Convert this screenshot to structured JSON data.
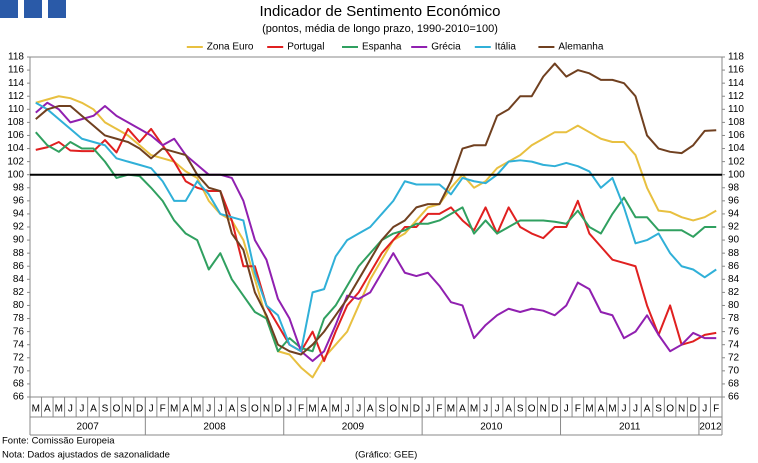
{
  "chart_data": {
    "type": "line",
    "title": "Indicador de Sentimento Económico",
    "subtitle": "(pontos, média de longo prazo, 1990-2010=100)",
    "categories": [
      "M",
      "A",
      "M",
      "J",
      "J",
      "A",
      "S",
      "O",
      "N",
      "D",
      "J",
      "F",
      "M",
      "A",
      "M",
      "J",
      "J",
      "A",
      "S",
      "O",
      "N",
      "D",
      "J",
      "F",
      "M",
      "A",
      "M",
      "J",
      "J",
      "A",
      "S",
      "O",
      "N",
      "D",
      "J",
      "F",
      "M",
      "A",
      "M",
      "J",
      "J",
      "A",
      "S",
      "O",
      "N",
      "D",
      "J",
      "F",
      "M",
      "A",
      "M",
      "J",
      "J",
      "A",
      "S",
      "O",
      "N",
      "D",
      "J",
      "F"
    ],
    "years": [
      "2007",
      "2008",
      "2009",
      "2010",
      "2011",
      "2012"
    ],
    "series": [
      {
        "name": "Zona Euro",
        "color": "#e8c040",
        "values": [
          111,
          111.5,
          112,
          111.7,
          111,
          110,
          108,
          107,
          106,
          104.5,
          103,
          102.5,
          102,
          100.5,
          99.5,
          96,
          94,
          93,
          90,
          84,
          78,
          73,
          72.5,
          70.5,
          69,
          72,
          74,
          76,
          80,
          84,
          87,
          90,
          91,
          93,
          95,
          95.5,
          98,
          100,
          98,
          99,
          101,
          102,
          103,
          104.5,
          105.5,
          106.5,
          106.5,
          107.5,
          106.5,
          105.5,
          105,
          105,
          103,
          98,
          94.5,
          94.3,
          93.5,
          93,
          93.5,
          94.5
        ]
      },
      {
        "name": "Portugal",
        "color": "#e02020",
        "values": [
          103.8,
          104.2,
          105,
          103.7,
          103.6,
          103.6,
          105.3,
          103.4,
          107,
          105,
          107,
          104.5,
          102,
          99,
          98,
          97.5,
          97.5,
          93,
          86,
          86,
          80,
          77,
          74,
          73,
          76,
          71.5,
          76,
          80,
          82,
          85,
          88,
          90,
          92,
          92,
          94,
          94,
          95,
          93,
          91.5,
          95,
          91,
          95,
          92,
          91,
          90.3,
          92,
          92,
          96,
          91,
          89,
          87,
          86.5,
          86,
          80,
          75.5,
          80,
          74,
          74.5,
          75.5,
          75.8
        ]
      },
      {
        "name": "Espanha",
        "color": "#30a060",
        "values": [
          106.5,
          104.5,
          103.5,
          105,
          104,
          104,
          102,
          99.5,
          100,
          99.8,
          98,
          96,
          93,
          91,
          90,
          85.5,
          88,
          84,
          81.5,
          79,
          78,
          73,
          75,
          73.5,
          73,
          78,
          80,
          83,
          86,
          88,
          90,
          91,
          91.5,
          92.5,
          92.5,
          93,
          94,
          95,
          91,
          93,
          91,
          92,
          93,
          93,
          93,
          92.8,
          92.5,
          94.5,
          92,
          91,
          94,
          96.5,
          93.5,
          93.5,
          91.5,
          91.5,
          91.5,
          90.5,
          92,
          92
        ]
      },
      {
        "name": "Grécia",
        "color": "#9020b0",
        "values": [
          109.5,
          111,
          110,
          108,
          108.5,
          109,
          110.5,
          109,
          108,
          107,
          106,
          104.5,
          105.5,
          103,
          101.5,
          100,
          100,
          99.5,
          96,
          90,
          87,
          81,
          78,
          73,
          71.5,
          73,
          77,
          81.5,
          81,
          82,
          85,
          88,
          85,
          84.5,
          85,
          83,
          80.5,
          80,
          75,
          77,
          78.5,
          79.5,
          79,
          79.5,
          79.2,
          78.5,
          80,
          83.5,
          82.5,
          79,
          78.5,
          75,
          76,
          78.5,
          75.5,
          73,
          74,
          75.8,
          75,
          75
        ]
      },
      {
        "name": "Itália",
        "color": "#30b0d8",
        "values": [
          111,
          110,
          108.5,
          107,
          105.5,
          105,
          104.5,
          102.5,
          102,
          101.5,
          101,
          99,
          96,
          96,
          99,
          97,
          94,
          93.5,
          93,
          85,
          80,
          78.5,
          74,
          73,
          82,
          82.5,
          87.5,
          90,
          91,
          92,
          94,
          96,
          99,
          98.5,
          98.5,
          98.5,
          97,
          99.5,
          99,
          98.7,
          100,
          102,
          102.2,
          102,
          101.5,
          101.3,
          101.8,
          101.3,
          100.5,
          98,
          99.5,
          95,
          89.5,
          90,
          91,
          88,
          86,
          85.5,
          84.3,
          85.5
        ]
      },
      {
        "name": "Alemanha",
        "color": "#704020",
        "values": [
          108.5,
          110,
          110.5,
          110.5,
          109,
          107.5,
          106,
          105.5,
          105,
          104,
          102.5,
          104,
          103.5,
          103,
          100,
          98,
          97.5,
          91,
          88.5,
          82,
          78.5,
          74,
          73,
          72.5,
          74,
          76,
          78.5,
          81,
          84,
          87,
          90,
          92,
          93,
          95,
          95.5,
          95.5,
          99,
          104,
          104.5,
          104.5,
          109,
          110,
          112,
          112,
          115,
          117,
          115,
          116,
          115.5,
          114.5,
          114.5,
          114,
          112,
          106,
          104,
          103.5,
          103.3,
          104.5,
          106.7,
          106.8
        ]
      }
    ],
    "reference_line": 100,
    "ylim": [
      66,
      118
    ],
    "yticks": [
      66,
      68,
      70,
      72,
      74,
      76,
      78,
      80,
      82,
      84,
      86,
      88,
      90,
      92,
      94,
      96,
      98,
      100,
      102,
      104,
      106,
      108,
      110,
      112,
      114,
      116,
      118
    ],
    "y2lim": [
      66,
      118
    ],
    "y2ticks": [
      66,
      68,
      70,
      72,
      74,
      76,
      78,
      80,
      82,
      84,
      86,
      88,
      90,
      92,
      94,
      96,
      98,
      100,
      102,
      104,
      106,
      108,
      110,
      112,
      114,
      116,
      118
    ],
    "grid": false,
    "legend": "top",
    "footnotes": [
      "Fonte: Comissão Europeia",
      "Nota: Dados ajustados de sazonalidade"
    ],
    "credit": "(Gráfico: GEE)"
  }
}
